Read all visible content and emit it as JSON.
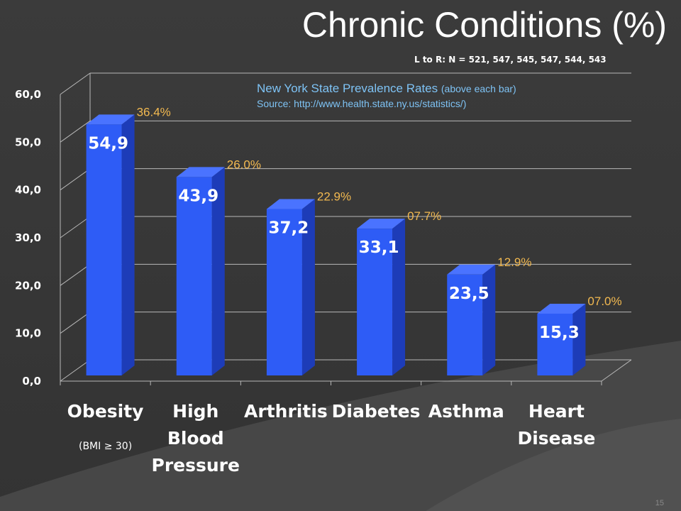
{
  "slide": {
    "title": "Chronic Conditions (%)",
    "sample_note": "L to R:  N = 521, 547, 545, 547, 544, 543",
    "state_note_main": "New York State Prevalence Rates ",
    "state_note_small": "(above each bar)",
    "source_note": "Source:  http://www.health.state.ny.us/statistics/)",
    "page_number": "15"
  },
  "colors": {
    "bar_front": "#2e5cf6",
    "bar_side": "#1d3cb8",
    "bar_top": "#4a73ff",
    "grid": "#b8b8b8",
    "prevalence_text": "#f2b950",
    "axis_text": "#ffffff"
  },
  "chart_data": {
    "type": "bar",
    "categories": [
      [
        "Obesity"
      ],
      [
        "High",
        "Blood",
        "Pressure"
      ],
      [
        "Arthritis"
      ],
      [
        "Diabetes"
      ],
      [
        "Asthma"
      ],
      [
        "Heart",
        "Disease"
      ]
    ],
    "category_notes": [
      "(BMI ≥ 30)",
      "",
      "",
      "",
      "",
      ""
    ],
    "values": [
      54.9,
      43.9,
      37.2,
      33.1,
      23.5,
      15.3
    ],
    "data_labels": [
      "54,9",
      "43,9",
      "37,2",
      "33,1",
      "23,5",
      "15,3"
    ],
    "prevalence_labels": [
      "36.4%",
      "26.0%",
      "22.9%",
      "07.7%",
      "12.9%",
      "07.0%"
    ],
    "yticks": [
      "0,0",
      "10,0",
      "20,0",
      "30,0",
      "40,0",
      "50,0",
      "60,0"
    ],
    "ylim": [
      0,
      60
    ],
    "grid": true,
    "three_d": true
  }
}
